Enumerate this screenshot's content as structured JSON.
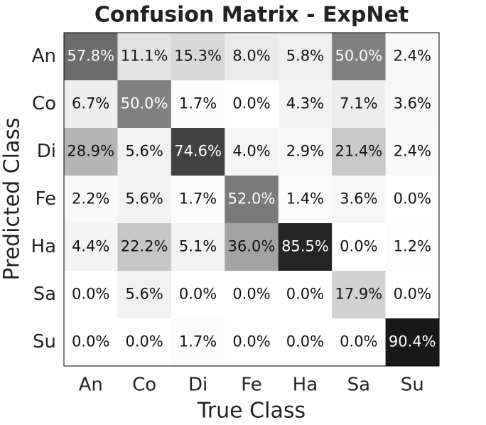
{
  "chart_data": {
    "type": "heatmap",
    "title": "Confusion Matrix - ExpNet",
    "xlabel": "True Class",
    "ylabel": "Predicted Class",
    "x_categories": [
      "An",
      "Co",
      "Di",
      "Fe",
      "Ha",
      "Sa",
      "Su"
    ],
    "y_categories": [
      "An",
      "Co",
      "Di",
      "Fe",
      "Ha",
      "Sa",
      "Su"
    ],
    "values": [
      [
        57.8,
        11.1,
        15.3,
        8.0,
        5.8,
        50.0,
        2.4
      ],
      [
        6.7,
        50.0,
        1.7,
        0.0,
        4.3,
        7.1,
        3.6
      ],
      [
        28.9,
        5.6,
        74.6,
        4.0,
        2.9,
        21.4,
        2.4
      ],
      [
        2.2,
        5.6,
        1.7,
        52.0,
        1.4,
        3.6,
        0.0
      ],
      [
        4.4,
        22.2,
        5.1,
        36.0,
        85.5,
        0.0,
        1.2
      ],
      [
        0.0,
        5.6,
        0.0,
        0.0,
        0.0,
        17.9,
        0.0
      ],
      [
        0.0,
        0.0,
        1.7,
        0.0,
        0.0,
        0.0,
        90.4
      ]
    ],
    "value_labels": [
      [
        "57.8%",
        "11.1%",
        "15.3%",
        "8.0%",
        "5.8%",
        "50.0%",
        "2.4%"
      ],
      [
        "6.7%",
        "50.0%",
        "1.7%",
        "0.0%",
        "4.3%",
        "7.1%",
        "3.6%"
      ],
      [
        "28.9%",
        "5.6%",
        "74.6%",
        "4.0%",
        "2.9%",
        "21.4%",
        "2.4%"
      ],
      [
        "2.2%",
        "5.6%",
        "1.7%",
        "52.0%",
        "1.4%",
        "3.6%",
        "0.0%"
      ],
      [
        "4.4%",
        "22.2%",
        "5.1%",
        "36.0%",
        "85.5%",
        "0.0%",
        "1.2%"
      ],
      [
        "0.0%",
        "5.6%",
        "0.0%",
        "0.0%",
        "0.0%",
        "17.9%",
        "0.0%"
      ],
      [
        "0.0%",
        "0.0%",
        "1.7%",
        "0.0%",
        "0.0%",
        "0.0%",
        "90.4%"
      ]
    ]
  }
}
